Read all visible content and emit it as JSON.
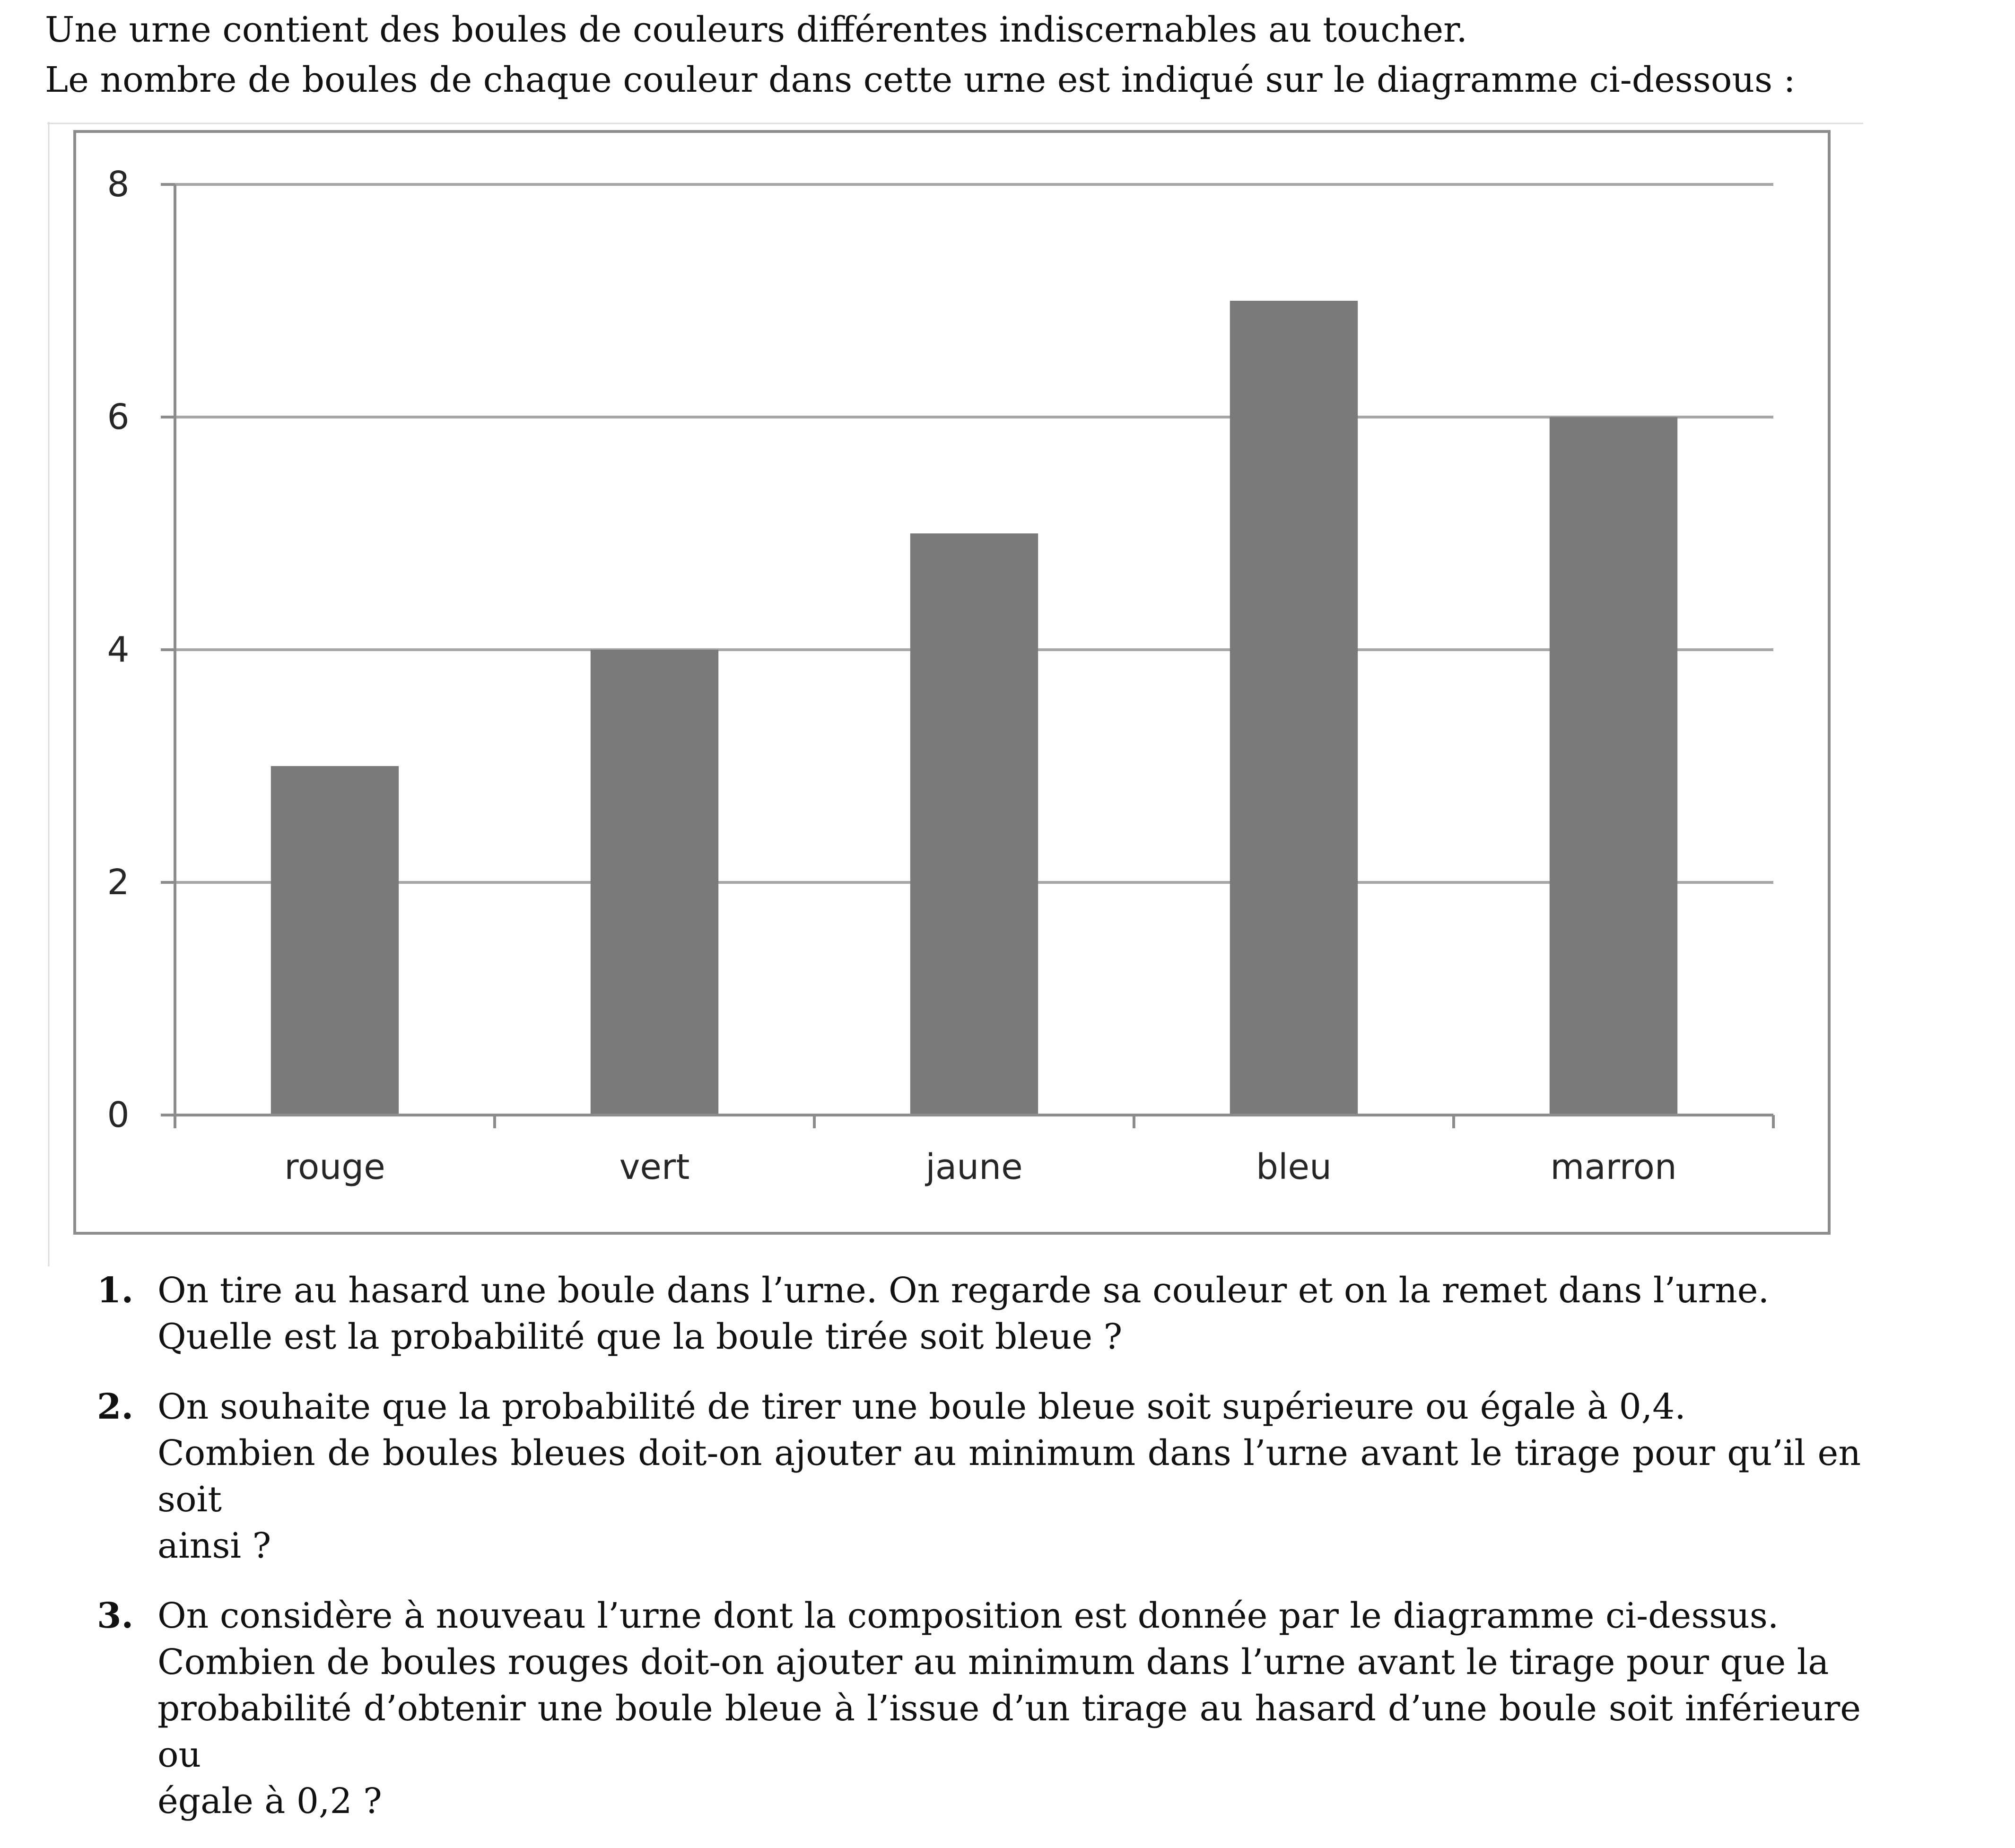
{
  "intro": {
    "line1": "Une urne contient des boules de couleurs différentes indiscernables au toucher.",
    "line2": "Le nombre de boules de chaque couleur dans cette urne est indiqué sur le diagramme ci-dessous :"
  },
  "chart_data": {
    "type": "bar",
    "categories": [
      "rouge",
      "vert",
      "jaune",
      "bleu",
      "marron"
    ],
    "values": [
      3,
      4,
      5,
      7,
      6
    ],
    "yticks": [
      0,
      2,
      4,
      6,
      8
    ],
    "ylim": [
      0,
      8
    ],
    "grid": true,
    "legend": "none",
    "title": "",
    "xlabel": "",
    "ylabel": "",
    "bar_color": "#7a7a7a",
    "grid_color": "#a6a6a6",
    "frame_color": "#8c8c8c"
  },
  "questions": [
    {
      "number": "1.",
      "lines": [
        "On tire au hasard une boule dans l’urne. On regarde sa couleur et on la remet dans l’urne.",
        "Quelle est la probabilité que la boule tirée soit bleue ?"
      ]
    },
    {
      "number": "2.",
      "lines": [
        "On souhaite que la probabilité de tirer une boule bleue soit supérieure ou égale à 0,4.",
        "Combien de boules bleues doit-on ajouter au minimum dans l’urne avant le tirage pour qu’il en soit",
        "ainsi ?"
      ]
    },
    {
      "number": "3.",
      "lines": [
        "On considère à nouveau l’urne dont la composition est donnée par le diagramme ci-dessus.",
        "Combien de boules rouges doit-on ajouter au minimum dans l’urne avant le tirage pour que la",
        "probabilité d’obtenir une boule bleue à l’issue d’un tirage au hasard d’une boule soit inférieure ou",
        "égale à 0,2 ?"
      ]
    }
  ]
}
